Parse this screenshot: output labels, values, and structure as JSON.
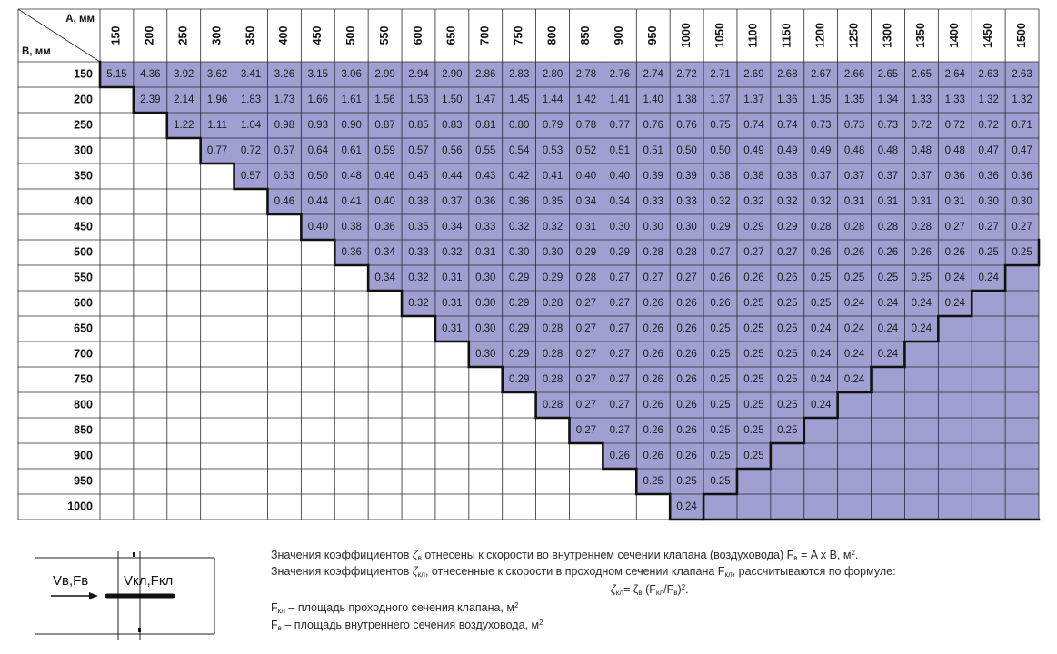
{
  "table": {
    "corner": {
      "a_label": "A, мм",
      "b_label": "B, мм"
    },
    "columns": [
      "150",
      "200",
      "250",
      "300",
      "350",
      "400",
      "450",
      "500",
      "550",
      "600",
      "650",
      "700",
      "750",
      "800",
      "850",
      "900",
      "950",
      "1000",
      "1050",
      "1100",
      "1150",
      "1200",
      "1250",
      "1300",
      "1350",
      "1400",
      "1450",
      "1500"
    ],
    "rows": [
      {
        "b": "150",
        "start": 0,
        "values": [
          "5.15",
          "4.36",
          "3.92",
          "3.62",
          "3.41",
          "3.26",
          "3.15",
          "3.06",
          "2.99",
          "2.94",
          "2.90",
          "2.86",
          "2.83",
          "2.80",
          "2.78",
          "2.76",
          "2.74",
          "2.72",
          "2.71",
          "2.69",
          "2.68",
          "2.67",
          "2.66",
          "2.65",
          "2.65",
          "2.64",
          "2.63",
          "2.63"
        ]
      },
      {
        "b": "200",
        "start": 1,
        "values": [
          "2.39",
          "2.14",
          "1.96",
          "1.83",
          "1.73",
          "1.66",
          "1.61",
          "1.56",
          "1.53",
          "1.50",
          "1.47",
          "1.45",
          "1.44",
          "1.42",
          "1.41",
          "1.40",
          "1.38",
          "1.37",
          "1.37",
          "1.36",
          "1.35",
          "1.35",
          "1.34",
          "1.33",
          "1.33",
          "1.32",
          "1.32"
        ]
      },
      {
        "b": "250",
        "start": 2,
        "values": [
          "1.22",
          "1.11",
          "1.04",
          "0.98",
          "0.93",
          "0.90",
          "0.87",
          "0.85",
          "0.83",
          "0.81",
          "0.80",
          "0.79",
          "0.78",
          "0.77",
          "0.76",
          "0.76",
          "0.75",
          "0.74",
          "0.74",
          "0.73",
          "0.73",
          "0.73",
          "0.72",
          "0.72",
          "0.72",
          "0.71"
        ]
      },
      {
        "b": "300",
        "start": 3,
        "values": [
          "0.77",
          "0.72",
          "0.67",
          "0.64",
          "0.61",
          "0.59",
          "0.57",
          "0.56",
          "0.55",
          "0.54",
          "0.53",
          "0.52",
          "0.51",
          "0.51",
          "0.50",
          "0.50",
          "0.49",
          "0.49",
          "0.49",
          "0.48",
          "0.48",
          "0.48",
          "0.48",
          "0.47",
          "0.47"
        ]
      },
      {
        "b": "350",
        "start": 4,
        "values": [
          "0.57",
          "0.53",
          "0.50",
          "0.48",
          "0.46",
          "0.45",
          "0.44",
          "0.43",
          "0.42",
          "0.41",
          "0.40",
          "0.40",
          "0.39",
          "0.39",
          "0.38",
          "0.38",
          "0.38",
          "0.37",
          "0.37",
          "0.37",
          "0.37",
          "0.36",
          "0.36",
          "0.36"
        ]
      },
      {
        "b": "400",
        "start": 5,
        "values": [
          "0.46",
          "0.44",
          "0.41",
          "0.40",
          "0.38",
          "0.37",
          "0.36",
          "0.36",
          "0.35",
          "0.34",
          "0.34",
          "0.33",
          "0.33",
          "0.32",
          "0.32",
          "0.32",
          "0.32",
          "0.31",
          "0.31",
          "0.31",
          "0.31",
          "0.30",
          "0.30"
        ]
      },
      {
        "b": "450",
        "start": 6,
        "values": [
          "0.40",
          "0.38",
          "0.36",
          "0.35",
          "0.34",
          "0.33",
          "0.32",
          "0.32",
          "0.31",
          "0.30",
          "0.30",
          "0.30",
          "0.29",
          "0.29",
          "0.29",
          "0.28",
          "0.28",
          "0.28",
          "0.28",
          "0.27",
          "0.27",
          "0.27"
        ]
      },
      {
        "b": "500",
        "start": 7,
        "values": [
          "0.36",
          "0.34",
          "0.33",
          "0.32",
          "0.31",
          "0.30",
          "0.30",
          "0.29",
          "0.29",
          "0.28",
          "0.28",
          "0.27",
          "0.27",
          "0.27",
          "0.26",
          "0.26",
          "0.26",
          "0.26",
          "0.26",
          "0.25",
          "0.25"
        ]
      },
      {
        "b": "550",
        "start": 8,
        "values": [
          "0.34",
          "0.32",
          "0.31",
          "0.30",
          "0.29",
          "0.29",
          "0.28",
          "0.27",
          "0.27",
          "0.27",
          "0.26",
          "0.26",
          "0.26",
          "0.25",
          "0.25",
          "0.25",
          "0.25",
          "0.24",
          "0.24"
        ]
      },
      {
        "b": "600",
        "start": 9,
        "values": [
          "0.32",
          "0.31",
          "0.30",
          "0.29",
          "0.28",
          "0.27",
          "0.27",
          "0.26",
          "0.26",
          "0.26",
          "0.25",
          "0.25",
          "0.25",
          "0.24",
          "0.24",
          "0.24",
          "0.24"
        ]
      },
      {
        "b": "650",
        "start": 10,
        "values": [
          "0.31",
          "0.30",
          "0.29",
          "0.28",
          "0.27",
          "0.27",
          "0.26",
          "0.26",
          "0.25",
          "0.25",
          "0.25",
          "0.24",
          "0.24",
          "0.24",
          "0.24"
        ]
      },
      {
        "b": "700",
        "start": 11,
        "values": [
          "0.30",
          "0.29",
          "0.28",
          "0.27",
          "0.27",
          "0.26",
          "0.26",
          "0.25",
          "0.25",
          "0.25",
          "0.24",
          "0.24",
          "0.24"
        ]
      },
      {
        "b": "750",
        "start": 12,
        "values": [
          "0.29",
          "0.28",
          "0.27",
          "0.27",
          "0.26",
          "0.26",
          "0.25",
          "0.25",
          "0.25",
          "0.24",
          "0.24"
        ]
      },
      {
        "b": "800",
        "start": 13,
        "values": [
          "0.28",
          "0.27",
          "0.27",
          "0.26",
          "0.26",
          "0.25",
          "0.25",
          "0.25",
          "0.24"
        ]
      },
      {
        "b": "850",
        "start": 14,
        "values": [
          "0.27",
          "0.27",
          "0.26",
          "0.26",
          "0.25",
          "0.25",
          "0.25"
        ]
      },
      {
        "b": "900",
        "start": 15,
        "values": [
          "0.26",
          "0.26",
          "0.26",
          "0.25",
          "0.25"
        ]
      },
      {
        "b": "950",
        "start": 16,
        "values": [
          "0.25",
          "0.25",
          "0.25"
        ]
      },
      {
        "b": "1000",
        "start": 17,
        "values": [
          "0.24"
        ]
      }
    ]
  },
  "diagram": {
    "left_label": "Vв,Fв",
    "right_label": "Vкл,Fкл"
  },
  "notes": {
    "line1_a": "Значения коэффициентов",
    "line1_zeta": "ζ",
    "line1_zeta_sub": "в",
    "line1_b": "отнесены к скорости во внутреннем сечении клапана (воздуховода) F",
    "line1_f_sub": "в",
    "line1_c": "= A x B, м",
    "line1_sup": "2",
    "line1_end": ".",
    "line2_a": "Значения коэффициентов",
    "line2_zeta": "ζ",
    "line2_zeta_sub": "кл",
    "line2_b": ", отнесенные к скорости в проходном сечении клапана F",
    "line2_f_sub": "кл",
    "line2_c": ", рассчитываются по формуле:",
    "formula_zeta1": "ζ",
    "formula_sub1": "кл",
    "formula_eq": "= ζ",
    "formula_sub2": "в",
    "formula_open": "(F",
    "formula_sub3": "кл",
    "formula_slash": "/F",
    "formula_sub4": "в",
    "formula_close": ")",
    "formula_sup": "2",
    "formula_end": ".",
    "line4_a": "F",
    "line4_sub": "кл",
    "line4_b": "– площадь проходного сечения клапана, м",
    "line4_sup": "2",
    "line5_a": "F",
    "line5_sub": "в",
    "line5_b": "– площадь внутреннего сечения воздуховода, м",
    "line5_sup": "2"
  },
  "colors": {
    "fill": "#a09fd2",
    "grid": "#2a2a2a",
    "border": "#111111"
  }
}
